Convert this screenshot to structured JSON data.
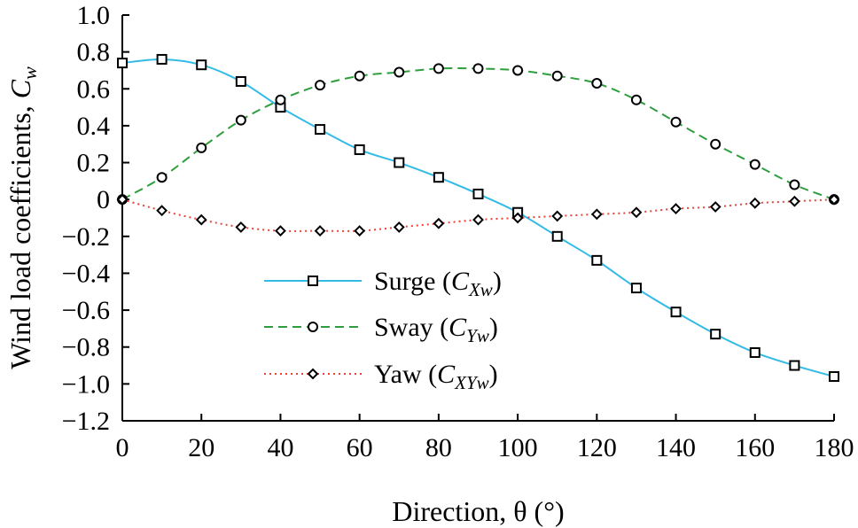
{
  "chart_data": {
    "type": "line",
    "title": "",
    "xlabel": "Direction, θ (°)",
    "ylabel": "Wind load coefficients, C_w",
    "xlim": [
      0,
      180
    ],
    "ylim": [
      -1.2,
      1.0
    ],
    "xticks": [
      0,
      20,
      40,
      60,
      80,
      100,
      120,
      140,
      160,
      180
    ],
    "yticks": [
      1.0,
      0.8,
      0.6,
      0.4,
      0.2,
      0,
      -0.2,
      -0.4,
      -0.6,
      -0.8,
      -1.0,
      -1.2
    ],
    "xtick_labels": [
      "0",
      "20",
      "40",
      "60",
      "80",
      "100",
      "120",
      "140",
      "160",
      "180"
    ],
    "ytick_labels": [
      "1.0",
      "0.8",
      "0.6",
      "0.4",
      "0.2",
      "0",
      "−0.2",
      "−0.4",
      "−0.6",
      "−0.8",
      "−1.0",
      "−1.2"
    ],
    "grid": false,
    "legend_position": "lower-center",
    "x": [
      0,
      10,
      20,
      30,
      40,
      50,
      60,
      70,
      80,
      90,
      100,
      110,
      120,
      130,
      140,
      150,
      160,
      170,
      180
    ],
    "series": [
      {
        "name": "Surge",
        "symbol": "C",
        "subscript": "Xw",
        "color": "#33bbe6",
        "dash": "solid",
        "marker": "square",
        "values": [
          0.74,
          0.76,
          0.73,
          0.64,
          0.5,
          0.38,
          0.27,
          0.2,
          0.12,
          0.03,
          -0.07,
          -0.2,
          -0.33,
          -0.48,
          -0.61,
          -0.73,
          -0.83,
          -0.9,
          -0.96
        ]
      },
      {
        "name": "Sway",
        "symbol": "C",
        "subscript": "Yw",
        "color": "#2e9e3e",
        "dash": "dashed",
        "marker": "circle",
        "values": [
          0.0,
          0.12,
          0.28,
          0.43,
          0.54,
          0.62,
          0.67,
          0.69,
          0.71,
          0.71,
          0.7,
          0.67,
          0.63,
          0.54,
          0.42,
          0.3,
          0.19,
          0.08,
          0.0
        ]
      },
      {
        "name": "Yaw",
        "symbol": "C",
        "subscript": "XYw",
        "color": "#e8443a",
        "dash": "dotted",
        "marker": "diamond",
        "values": [
          0.0,
          -0.06,
          -0.11,
          -0.15,
          -0.17,
          -0.17,
          -0.17,
          -0.15,
          -0.13,
          -0.11,
          -0.1,
          -0.09,
          -0.08,
          -0.07,
          -0.05,
          -0.04,
          -0.02,
          -0.01,
          0.0
        ]
      }
    ]
  }
}
